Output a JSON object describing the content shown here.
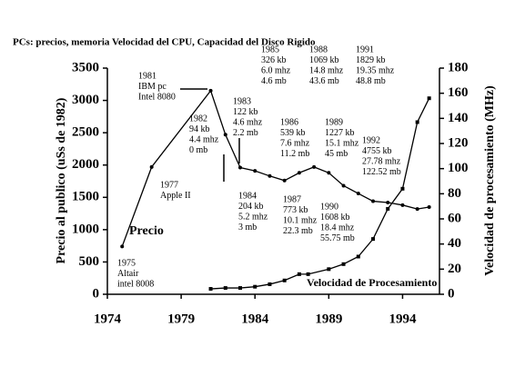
{
  "chart_data": {
    "type": "line",
    "title": "PCs: precios, memoria Velocidad del CPU, Capacidad del Disco Rigido",
    "y_label": "Precio al publico (uSs de 1982)",
    "y2_label": "Velocidad de procesamiento (MHz)",
    "xlim": [
      1974,
      1996.5
    ],
    "xticks": [
      1974,
      1979,
      1984,
      1989,
      1994
    ],
    "ylim": [
      0,
      3500
    ],
    "yticks": [
      0,
      500,
      1000,
      1500,
      2000,
      2500,
      3000,
      3500
    ],
    "y2lim": [
      0,
      180
    ],
    "y2ticks": [
      0,
      20,
      40,
      60,
      80,
      100,
      120,
      140,
      160,
      180
    ],
    "color": "#000000",
    "series": [
      {
        "name": "Precio",
        "color": "#000000",
        "x": [
          1975,
          1977,
          1981,
          1982,
          1983,
          1984,
          1985,
          1986,
          1987,
          1988,
          1989,
          1990,
          1991,
          1992,
          1993,
          1994,
          1995,
          1995.8
        ],
        "values": [
          740,
          1970,
          3150,
          2470,
          1960,
          1910,
          1830,
          1760,
          1880,
          1970,
          1880,
          1680,
          1560,
          1440,
          1420,
          1380,
          1320,
          1350
        ]
      },
      {
        "name": "Velocidad de Procesamiento",
        "color": "#000000",
        "axis": "y2",
        "x": [
          1981,
          1982,
          1983,
          1984,
          1985,
          1986,
          1987,
          1987.6,
          1989,
          1990,
          1991,
          1992,
          1993,
          1994,
          1995,
          1995.8
        ],
        "values": [
          4.3,
          5,
          5,
          6,
          8,
          11,
          16,
          16,
          20,
          24,
          30,
          44,
          68,
          84,
          137,
          156
        ]
      }
    ],
    "annotations": [
      [
        "1975",
        "Altair",
        "intel 8008"
      ],
      [
        "1977",
        "Apple II"
      ],
      [
        "1981",
        "IBM pc",
        "Intel 8080"
      ],
      [
        "1982",
        "94 kb",
        "4.4 mhz",
        "0 mb"
      ],
      [
        "1983",
        "122 kb",
        "4.6 mhz",
        "2.2 mb"
      ],
      [
        "1984",
        "204 kb",
        "5.2 mhz",
        "3 mb"
      ],
      [
        "1985",
        "326 kb",
        "6.0 mhz",
        "4.6 mb"
      ],
      [
        "1986",
        "539 kb",
        "7.6 mhz",
        "11.2 mb"
      ],
      [
        "1987",
        "773 kb",
        "10.1 mhz",
        "22.3 mb"
      ],
      [
        "1988",
        "1069 kb",
        "14.8 mhz",
        "43.6 mb"
      ],
      [
        "1989",
        "1227 kb",
        "15.1 mhz",
        "45 mb"
      ],
      [
        "1990",
        "1608 kb",
        "18.4 mhz",
        "55.75 mb"
      ],
      [
        "1991",
        "1829 kb",
        "19.35 mhz",
        "48.8 mb"
      ],
      [
        "1992",
        "4755 kb",
        "27.78 mhz",
        "122.52 mb"
      ]
    ]
  }
}
